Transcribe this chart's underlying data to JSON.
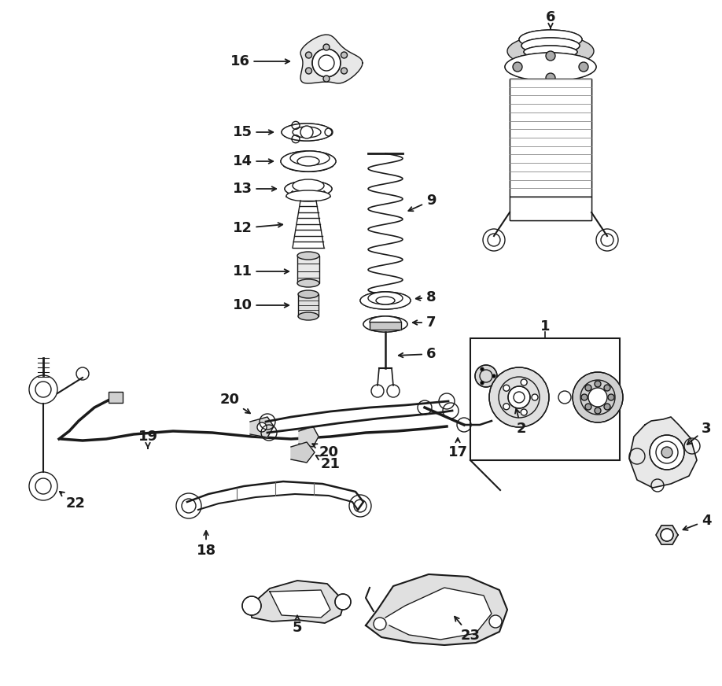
{
  "bg_color": "#ffffff",
  "line_color": "#1a1a1a",
  "figsize": [
    9.18,
    8.72
  ],
  "dpi": 100
}
